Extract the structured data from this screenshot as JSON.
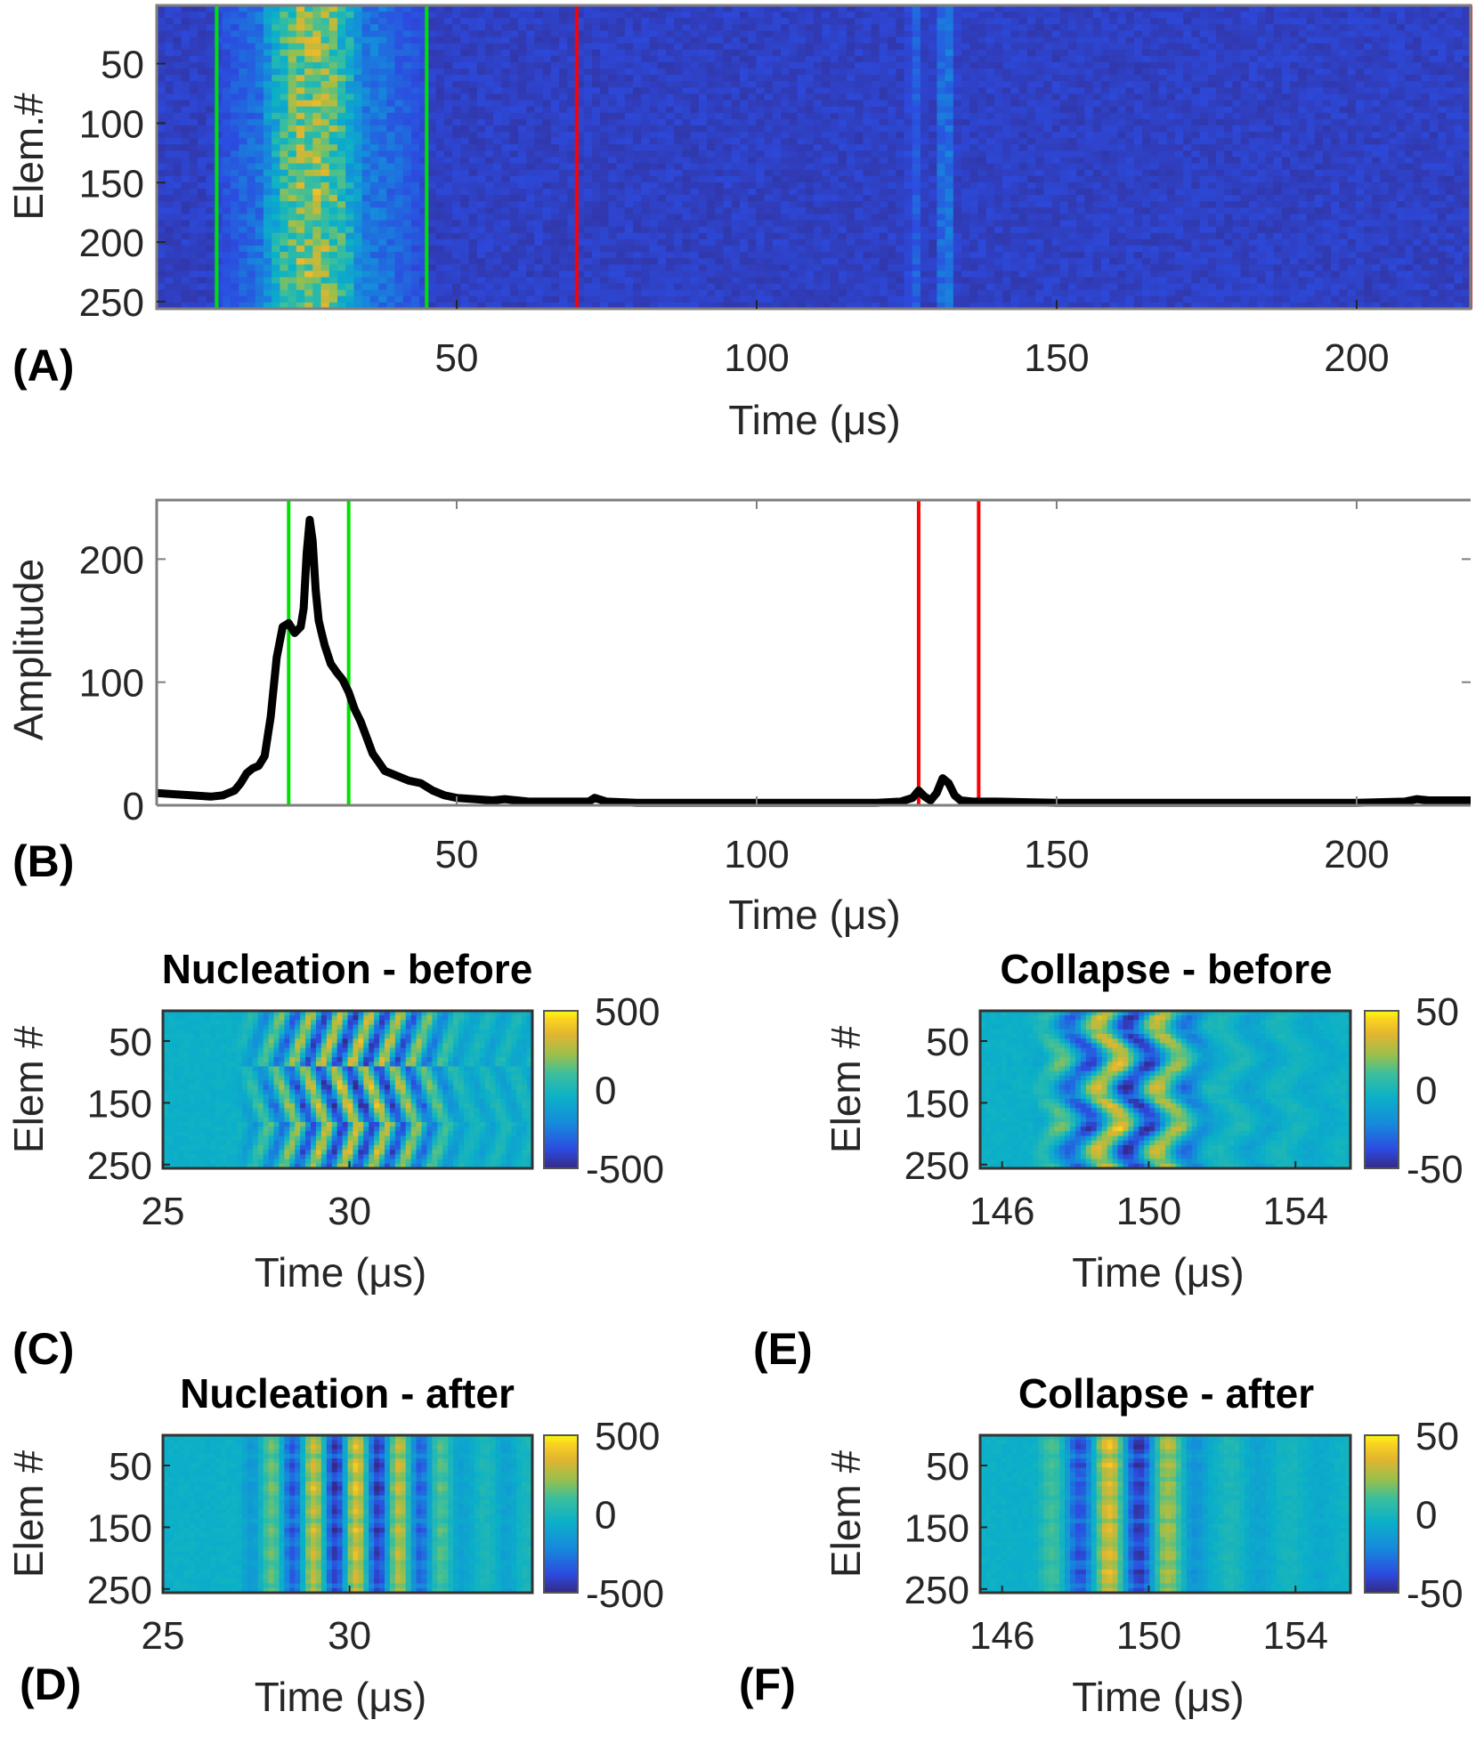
{
  "figure": {
    "panel_letters": [
      "(A)",
      "(B)",
      "(C)",
      "(D)",
      "(E)",
      "(F)"
    ]
  },
  "chart_data": [
    {
      "id": "A",
      "type": "heatmap",
      "title": "",
      "xlabel": "Time (μs)",
      "ylabel": "Elem.#",
      "xlim": [
        0,
        219
      ],
      "ylim": [
        1,
        256
      ],
      "y_reversed": true,
      "xticks": [
        50,
        100,
        150,
        200
      ],
      "yticks": [
        50,
        100,
        150,
        200,
        250
      ],
      "colormap": "parula",
      "description": "Channel data magnitude: strong yellow band around 20–35 μs, weak echo band near 125–135 μs, low background elsewhere",
      "bands": [
        {
          "t_start": 18,
          "t_end": 34,
          "intensity": 0.9
        },
        {
          "t_start": 10,
          "t_end": 45,
          "intensity": 0.35
        },
        {
          "t_start": 125,
          "t_end": 128,
          "intensity": 0.22
        },
        {
          "t_start": 130,
          "t_end": 133,
          "intensity": 0.3
        }
      ],
      "vlines": [
        {
          "x": 10,
          "color": "#00e000"
        },
        {
          "x": 45,
          "color": "#00e000"
        },
        {
          "x": 70,
          "color": "#ff0000"
        },
        {
          "x": 219,
          "color": "#ff0000"
        }
      ]
    },
    {
      "id": "B",
      "type": "line",
      "title": "",
      "xlabel": "Time (μs)",
      "ylabel": "Amplitude",
      "xlim": [
        0,
        219
      ],
      "ylim": [
        0,
        248
      ],
      "xticks": [
        50,
        100,
        150,
        200
      ],
      "yticks": [
        0,
        100,
        200
      ],
      "series": [
        {
          "name": "Amplitude",
          "color": "#000000",
          "x": [
            0,
            3,
            6,
            9,
            11,
            13,
            14,
            15,
            16,
            17,
            18,
            19,
            20,
            21,
            22,
            23,
            24,
            24.5,
            25,
            25.5,
            26,
            26.5,
            27,
            27.5,
            28,
            29,
            30,
            31,
            32,
            33,
            34,
            35,
            36,
            37,
            38,
            40,
            42,
            44,
            46,
            48,
            50,
            53,
            56,
            58,
            62,
            68,
            72,
            73,
            75,
            80,
            90,
            100,
            110,
            120,
            124,
            126,
            127,
            128,
            129,
            130,
            131,
            132,
            133,
            134,
            136,
            140,
            150,
            160,
            170,
            180,
            190,
            200,
            208,
            210,
            212,
            219
          ],
          "y": [
            10,
            9,
            8,
            7,
            8,
            12,
            18,
            26,
            30,
            32,
            40,
            72,
            120,
            145,
            148,
            140,
            145,
            160,
            205,
            232,
            215,
            175,
            150,
            140,
            130,
            115,
            108,
            102,
            92,
            78,
            68,
            55,
            42,
            35,
            28,
            24,
            20,
            18,
            12,
            8,
            6,
            5,
            4,
            5,
            3,
            3,
            3,
            6,
            3,
            2,
            2,
            2,
            2,
            2,
            3,
            6,
            12,
            7,
            4,
            10,
            22,
            18,
            8,
            4,
            3,
            3,
            2,
            2,
            2,
            2,
            2,
            2,
            3,
            5,
            4,
            4
          ]
        }
      ],
      "vlines": [
        {
          "x": 22,
          "color": "#00e000"
        },
        {
          "x": 32,
          "color": "#00e000"
        },
        {
          "x": 127,
          "color": "#ff0000"
        },
        {
          "x": 137,
          "color": "#ff0000"
        }
      ]
    },
    {
      "id": "C",
      "type": "heatmap",
      "title": "Nucleation - before",
      "xlabel": "Time (μs)",
      "ylabel": "Elem #",
      "xlim": [
        25,
        34.9
      ],
      "ylim": [
        1,
        256
      ],
      "y_reversed": true,
      "xticks": [
        25,
        30
      ],
      "yticks": [
        50,
        150,
        250
      ],
      "colormap": "parula",
      "clim": [
        -500,
        500
      ],
      "colorbar_ticks": [
        500,
        0,
        -500
      ],
      "pattern": "diagonal",
      "active_range": [
        27.5,
        32.5
      ],
      "period": 0.8
    },
    {
      "id": "D",
      "type": "heatmap",
      "title": "Nucleation - after",
      "xlabel": "Time (μs)",
      "ylabel": "Elem #",
      "xlim": [
        25,
        34.9
      ],
      "ylim": [
        1,
        256
      ],
      "y_reversed": true,
      "xticks": [
        25,
        30
      ],
      "yticks": [
        50,
        150,
        250
      ],
      "colormap": "parula",
      "clim": [
        -500,
        500
      ],
      "colorbar_ticks": [
        500,
        0,
        -500
      ],
      "pattern": "vertical",
      "active_range": [
        27.5,
        32.5
      ],
      "period": 1.15
    },
    {
      "id": "E",
      "type": "heatmap",
      "title": "Collapse - before",
      "xlabel": "Time (μs)",
      "ylabel": "Elem #",
      "xlim": [
        145.4,
        155.5
      ],
      "ylim": [
        1,
        256
      ],
      "y_reversed": true,
      "xticks": [
        146,
        150,
        154
      ],
      "yticks": [
        50,
        150,
        250
      ],
      "colormap": "parula",
      "clim": [
        -50,
        50
      ],
      "colorbar_ticks": [
        50,
        0,
        -50
      ],
      "pattern": "zigzag",
      "active_range": [
        147.4,
        151.2
      ],
      "period": 1.65
    },
    {
      "id": "F",
      "type": "heatmap",
      "title": "Collapse - after",
      "xlabel": "Time (μs)",
      "ylabel": "Elem #",
      "xlim": [
        145.4,
        155.5
      ],
      "ylim": [
        1,
        256
      ],
      "y_reversed": true,
      "xticks": [
        146,
        150,
        154
      ],
      "yticks": [
        50,
        150,
        250
      ],
      "colormap": "parula",
      "clim": [
        -50,
        50
      ],
      "colorbar_ticks": [
        50,
        0,
        -50
      ],
      "pattern": "vertical",
      "active_range": [
        147.4,
        151.0
      ],
      "period": 1.65
    }
  ]
}
